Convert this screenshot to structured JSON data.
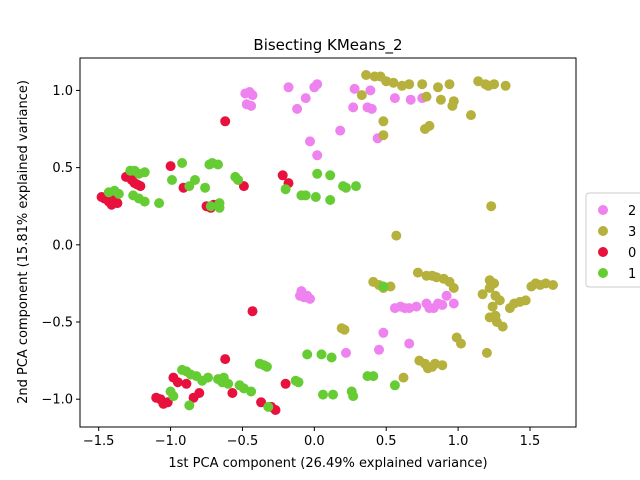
{
  "chart_data": {
    "type": "scatter",
    "title": "Bisecting KMeans_2",
    "xlabel": "1st PCA component (26.49% explained variance)",
    "ylabel": "2nd PCA component (15.81% explained variance)",
    "xlim": [
      -1.63,
      1.82
    ],
    "ylim": [
      -1.18,
      1.21
    ],
    "xticks": [
      -1.5,
      -1.0,
      -0.5,
      0.0,
      0.5,
      1.0,
      1.5
    ],
    "xtick_labels": [
      "−1.5",
      "−1.0",
      "−0.5",
      "0.0",
      "0.5",
      "1.0",
      "1.5"
    ],
    "yticks": [
      -1.0,
      -0.5,
      0.0,
      0.5,
      1.0
    ],
    "ytick_labels": [
      "−1.0",
      "−0.5",
      "0.0",
      "0.5",
      "1.0"
    ],
    "grid": false,
    "legend_placement": "right (outside, partially clipped)",
    "series": [
      {
        "name": "2",
        "color": "#ee82ee",
        "points": [
          [
            -0.48,
            0.98
          ],
          [
            -0.45,
            0.99
          ],
          [
            -0.43,
            0.97
          ],
          [
            -0.47,
            0.91
          ],
          [
            -0.44,
            0.9
          ],
          [
            -0.18,
            1.02
          ],
          [
            -0.06,
            0.95
          ],
          [
            -0.12,
            0.88
          ],
          [
            0.0,
            1.02
          ],
          [
            0.02,
            1.04
          ],
          [
            0.28,
            1.01
          ],
          [
            0.39,
            1.0
          ],
          [
            0.27,
            0.89
          ],
          [
            0.37,
            0.89
          ],
          [
            0.4,
            0.88
          ],
          [
            0.18,
            0.74
          ],
          [
            0.44,
            0.69
          ],
          [
            -0.03,
            0.67
          ],
          [
            0.02,
            0.58
          ],
          [
            0.56,
            0.95
          ],
          [
            0.67,
            0.94
          ],
          [
            0.75,
            0.95
          ],
          [
            -0.1,
            -0.33
          ],
          [
            -0.09,
            -0.3
          ],
          [
            -0.07,
            -0.34
          ],
          [
            -0.05,
            -0.33
          ],
          [
            -0.03,
            -0.35
          ],
          [
            0.56,
            -0.41
          ],
          [
            0.6,
            -0.4
          ],
          [
            0.63,
            -0.41
          ],
          [
            0.66,
            -0.41
          ],
          [
            0.71,
            -0.4
          ],
          [
            0.78,
            -0.38
          ],
          [
            0.8,
            -0.41
          ],
          [
            0.83,
            -0.41
          ],
          [
            0.86,
            -0.38
          ],
          [
            0.89,
            -0.39
          ],
          [
            0.92,
            -0.33
          ],
          [
            0.97,
            -0.38
          ],
          [
            0.48,
            -0.57
          ],
          [
            0.45,
            -0.68
          ],
          [
            0.66,
            -0.64
          ],
          [
            0.22,
            -0.7
          ]
        ]
      },
      {
        "name": "3",
        "color": "#b5b13c",
        "points": [
          [
            0.36,
            1.1
          ],
          [
            0.42,
            1.09
          ],
          [
            0.46,
            1.09
          ],
          [
            0.5,
            1.06
          ],
          [
            0.55,
            1.05
          ],
          [
            0.61,
            1.03
          ],
          [
            0.66,
            1.04
          ],
          [
            0.75,
            1.04
          ],
          [
            0.78,
            0.96
          ],
          [
            0.86,
            1.02
          ],
          [
            0.88,
            0.94
          ],
          [
            0.94,
            1.04
          ],
          [
            0.97,
            0.93
          ],
          [
            1.14,
            1.06
          ],
          [
            1.19,
            1.04
          ],
          [
            1.21,
            1.03
          ],
          [
            1.25,
            1.04
          ],
          [
            1.33,
            1.03
          ],
          [
            1.09,
            0.84
          ],
          [
            0.96,
            0.9
          ],
          [
            0.33,
            0.97
          ],
          [
            0.48,
            0.8
          ],
          [
            0.48,
            0.71
          ],
          [
            0.77,
            0.75
          ],
          [
            0.8,
            0.77
          ],
          [
            1.23,
            0.25
          ],
          [
            0.57,
            0.06
          ],
          [
            0.41,
            -0.24
          ],
          [
            0.45,
            -0.26
          ],
          [
            0.48,
            -0.28
          ],
          [
            0.53,
            -0.27
          ],
          [
            0.72,
            -0.18
          ],
          [
            0.78,
            -0.2
          ],
          [
            0.82,
            -0.2
          ],
          [
            0.85,
            -0.21
          ],
          [
            0.9,
            -0.22
          ],
          [
            0.94,
            -0.24
          ],
          [
            0.97,
            -0.28
          ],
          [
            1.17,
            -0.32
          ],
          [
            1.22,
            -0.28
          ],
          [
            1.26,
            -0.33
          ],
          [
            1.29,
            -0.36
          ],
          [
            1.22,
            -0.47
          ],
          [
            1.27,
            -0.5
          ],
          [
            1.31,
            -0.53
          ],
          [
            1.36,
            -0.41
          ],
          [
            1.39,
            -0.38
          ],
          [
            1.43,
            -0.37
          ],
          [
            1.47,
            -0.36
          ],
          [
            1.51,
            -0.27
          ],
          [
            1.54,
            -0.25
          ],
          [
            1.57,
            -0.26
          ],
          [
            1.61,
            -0.25
          ],
          [
            1.66,
            -0.26
          ],
          [
            1.2,
            -0.7
          ],
          [
            0.99,
            -0.6
          ],
          [
            1.02,
            -0.64
          ],
          [
            0.19,
            -0.54
          ],
          [
            0.21,
            -0.55
          ],
          [
            0.62,
            -0.86
          ],
          [
            0.73,
            -0.75
          ],
          [
            0.77,
            -0.77
          ],
          [
            0.79,
            -0.8
          ],
          [
            0.84,
            -0.77
          ],
          [
            0.89,
            -0.78
          ],
          [
            0.82,
            -0.79
          ],
          [
            1.22,
            -0.23
          ],
          [
            1.25,
            -0.25
          ],
          [
            1.24,
            -0.4
          ],
          [
            1.26,
            -0.46
          ]
        ]
      },
      {
        "name": "0",
        "color": "#e8103c",
        "points": [
          [
            -1.48,
            0.31
          ],
          [
            -1.46,
            0.3
          ],
          [
            -1.43,
            0.28
          ],
          [
            -1.41,
            0.26
          ],
          [
            -1.39,
            0.29
          ],
          [
            -1.37,
            0.27
          ],
          [
            -1.31,
            0.44
          ],
          [
            -1.29,
            0.45
          ],
          [
            -1.27,
            0.42
          ],
          [
            -1.25,
            0.4
          ],
          [
            -1.23,
            0.39
          ],
          [
            -1.21,
            0.38
          ],
          [
            -1.0,
            0.51
          ],
          [
            -0.91,
            0.37
          ],
          [
            -0.75,
            0.25
          ],
          [
            -0.72,
            0.24
          ],
          [
            -0.7,
            0.26
          ],
          [
            -0.62,
            0.8
          ],
          [
            -0.49,
            0.38
          ],
          [
            -0.22,
            0.45
          ],
          [
            -0.18,
            0.4
          ],
          [
            -1.1,
            -0.99
          ],
          [
            -1.07,
            -1.0
          ],
          [
            -1.05,
            -1.03
          ],
          [
            -1.02,
            -1.02
          ],
          [
            -0.98,
            -0.86
          ],
          [
            -0.95,
            -0.89
          ],
          [
            -0.89,
            -0.9
          ],
          [
            -0.84,
            -0.99
          ],
          [
            -0.8,
            -0.96
          ],
          [
            -0.62,
            -0.74
          ],
          [
            -0.57,
            -0.96
          ],
          [
            -0.37,
            -1.02
          ],
          [
            -0.3,
            -1.05
          ],
          [
            -0.27,
            -1.07
          ],
          [
            -0.2,
            -0.9
          ],
          [
            -0.43,
            -0.43
          ]
        ]
      },
      {
        "name": "1",
        "color": "#66cc33",
        "points": [
          [
            -1.43,
            0.34
          ],
          [
            -1.39,
            0.35
          ],
          [
            -1.36,
            0.33
          ],
          [
            -1.26,
            0.32
          ],
          [
            -1.22,
            0.3
          ],
          [
            -1.18,
            0.28
          ],
          [
            -1.28,
            0.48
          ],
          [
            -1.25,
            0.48
          ],
          [
            -1.22,
            0.46
          ],
          [
            -1.18,
            0.47
          ],
          [
            -1.08,
            0.27
          ],
          [
            -0.99,
            0.42
          ],
          [
            -0.92,
            0.53
          ],
          [
            -0.87,
            0.38
          ],
          [
            -0.83,
            0.42
          ],
          [
            -0.76,
            0.37
          ],
          [
            -0.73,
            0.52
          ],
          [
            -0.71,
            0.53
          ],
          [
            -0.67,
            0.52
          ],
          [
            -0.72,
            0.25
          ],
          [
            -0.66,
            0.27
          ],
          [
            -0.66,
            0.24
          ],
          [
            -0.55,
            0.44
          ],
          [
            -0.53,
            0.42
          ],
          [
            -0.2,
            0.36
          ],
          [
            -0.09,
            0.32
          ],
          [
            -0.06,
            0.32
          ],
          [
            0.02,
            0.46
          ],
          [
            0.01,
            0.31
          ],
          [
            0.11,
            0.29
          ],
          [
            0.11,
            0.45
          ],
          [
            0.2,
            0.38
          ],
          [
            0.22,
            0.37
          ],
          [
            0.29,
            0.38
          ],
          [
            -1.0,
            -0.95
          ],
          [
            -0.98,
            -0.98
          ],
          [
            -0.92,
            -0.81
          ],
          [
            -0.89,
            -0.82
          ],
          [
            -0.86,
            -0.84
          ],
          [
            -0.82,
            -0.85
          ],
          [
            -0.78,
            -0.88
          ],
          [
            -0.74,
            -0.86
          ],
          [
            -0.67,
            -0.87
          ],
          [
            -0.63,
            -0.86
          ],
          [
            -0.6,
            -0.9
          ],
          [
            -0.87,
            -1.04
          ],
          [
            -0.52,
            -0.91
          ],
          [
            -0.49,
            -0.93
          ],
          [
            -0.38,
            -0.77
          ],
          [
            -0.35,
            -0.78
          ],
          [
            -0.33,
            -0.79
          ],
          [
            -0.13,
            -0.88
          ],
          [
            -0.11,
            -0.89
          ],
          [
            -0.05,
            -0.71
          ],
          [
            0.05,
            -0.71
          ],
          [
            0.12,
            -0.73
          ],
          [
            0.06,
            -0.97
          ],
          [
            0.13,
            -0.97
          ],
          [
            0.26,
            -0.95
          ],
          [
            0.27,
            -0.98
          ],
          [
            0.37,
            -0.85
          ],
          [
            0.41,
            -0.85
          ],
          [
            0.48,
            -0.27
          ],
          [
            0.56,
            -0.91
          ],
          [
            -0.32,
            -1.05
          ],
          [
            -0.44,
            -0.95
          ],
          [
            -0.64,
            -0.89
          ]
        ]
      }
    ]
  }
}
